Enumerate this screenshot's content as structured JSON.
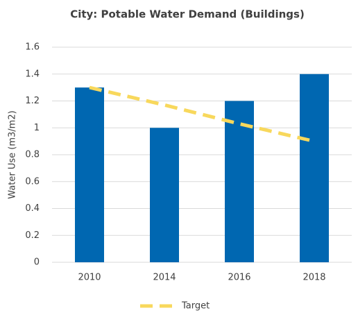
{
  "chart_data": {
    "type": "bar",
    "title": "City: Potable Water Demand (Buildings)",
    "y_label": "Water Use (m3/m2)",
    "categories": [
      "2010",
      "2014",
      "2016",
      "2018"
    ],
    "values": [
      1.3,
      1.0,
      1.2,
      1.4
    ],
    "color": "#0067b1",
    "line": {
      "name": "Target",
      "color": "#f8d85c",
      "values": [
        1.3,
        1.17,
        1.03,
        0.9
      ]
    },
    "ylim": [
      0,
      1.6
    ],
    "yticks": [
      0,
      0.2,
      0.4,
      0.6,
      0.8,
      1,
      1.2,
      1.4,
      1.6
    ],
    "grid": true,
    "legend": "bottom"
  }
}
